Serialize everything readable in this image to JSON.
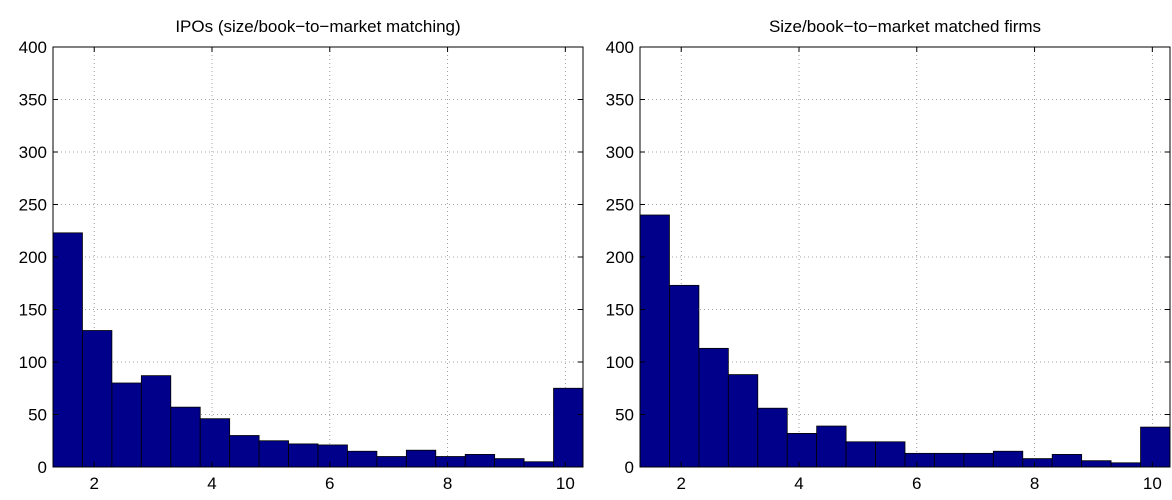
{
  "chart_data": [
    {
      "type": "bar",
      "title": "IPOs (size/book−to−market matching)",
      "xlabel": "",
      "ylabel": "",
      "xlim": [
        1.3,
        10.3
      ],
      "ylim": [
        0,
        400
      ],
      "xticks": [
        2,
        4,
        6,
        8,
        10
      ],
      "yticks": [
        0,
        50,
        100,
        150,
        200,
        250,
        300,
        350,
        400
      ],
      "grid": true,
      "bin_start": 1.3,
      "bin_width": 0.5,
      "values": [
        223,
        130,
        80,
        87,
        57,
        46,
        30,
        25,
        22,
        21,
        15,
        10,
        16,
        10,
        12,
        8,
        5,
        75
      ],
      "bar_color": "#00008B"
    },
    {
      "type": "bar",
      "title": "Size/book−to−market matched firms",
      "xlabel": "",
      "ylabel": "",
      "xlim": [
        1.3,
        10.3
      ],
      "ylim": [
        0,
        400
      ],
      "xticks": [
        2,
        4,
        6,
        8,
        10
      ],
      "yticks": [
        0,
        50,
        100,
        150,
        200,
        250,
        300,
        350,
        400
      ],
      "grid": true,
      "bin_start": 1.3,
      "bin_width": 0.5,
      "values": [
        240,
        173,
        113,
        88,
        56,
        32,
        39,
        24,
        24,
        13,
        13,
        13,
        15,
        8,
        12,
        6,
        4,
        38
      ],
      "bar_color": "#00008B"
    }
  ]
}
